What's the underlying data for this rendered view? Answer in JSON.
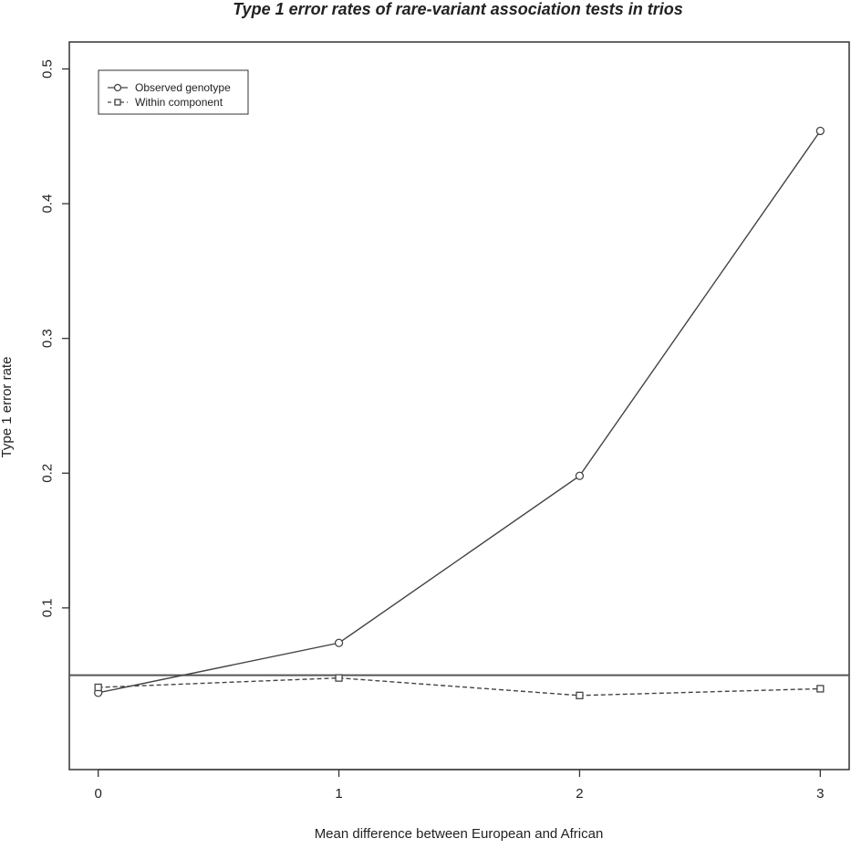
{
  "chart_data": {
    "type": "line",
    "title": "Type 1 error rates of rare-variant association tests in trios",
    "xlabel": "Mean difference between European and African",
    "ylabel": "Type 1 error rate",
    "x": [
      0,
      1,
      2,
      3
    ],
    "xticks": [
      "0",
      "1",
      "2",
      "3"
    ],
    "yticks": [
      "0.1",
      "0.2",
      "0.3",
      "0.4",
      "0.5"
    ],
    "xlim": [
      -0.12,
      3.12
    ],
    "ylim": [
      -0.02,
      0.52
    ],
    "reference_line": 0.05,
    "legend_position": "top-left",
    "grid": false,
    "series": [
      {
        "name": "Observed genotype",
        "values": [
          0.037,
          0.074,
          0.198,
          0.454
        ],
        "marker": "circle",
        "line_style": "solid"
      },
      {
        "name": "Within component",
        "values": [
          0.041,
          0.048,
          0.035,
          0.04
        ],
        "marker": "square",
        "line_style": "dashed"
      }
    ],
    "colors": {
      "axis": "#333333",
      "series": "#444444",
      "reference": "#555555"
    }
  }
}
